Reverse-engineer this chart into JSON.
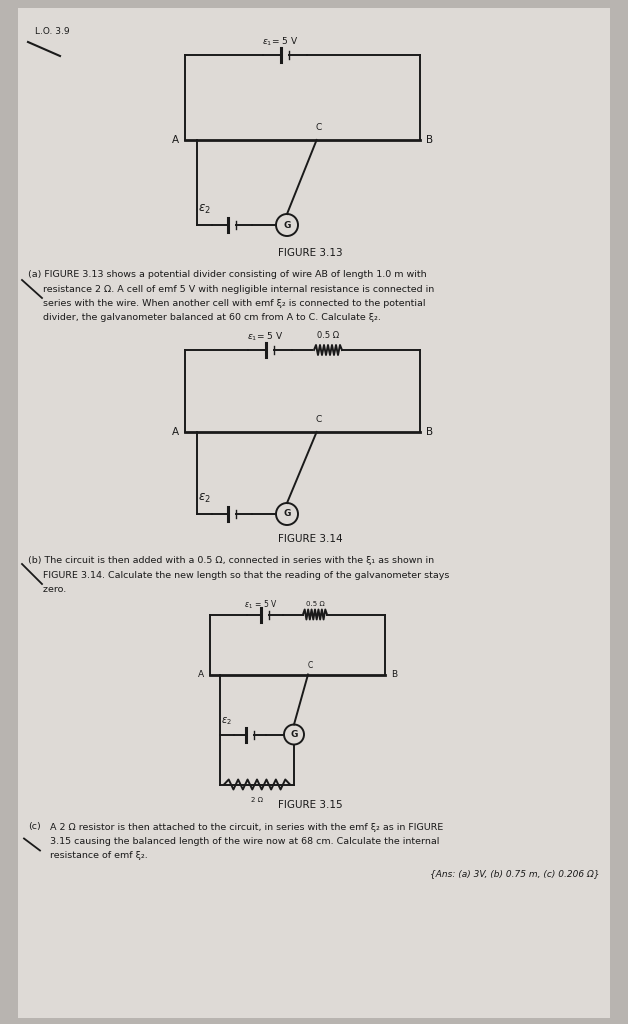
{
  "bg_color": "#b8b4b0",
  "paper_color": "#dedad6",
  "black": "#1a1a1a",
  "lw": 1.4,
  "fs_main": 7.5,
  "fs_small": 6.5,
  "lo_text": "L.O. 3.9",
  "fig1_label": "FIGURE 3.13",
  "fig2_label": "FIGURE 3.14",
  "fig3_label": "FIGURE 3.15",
  "emf1_label": "$\\varepsilon_1$= 5 V",
  "emf2_label": "$\\varepsilon_2$",
  "res_label": "0.5 Ω",
  "res2_label": "2 Ω",
  "A_label": "A",
  "B_label": "B",
  "C_label": "C",
  "G_label": "G",
  "lines_a": [
    "(a) FIGURE 3.13 shows a potential divider consisting of wire AB of length 1.0 m with",
    "     resistance 2 Ω. A cell of emf 5 V with negligible internal resistance is connected in",
    "     series with the wire. When another cell with emf ξ₂ is connected to the potential",
    "     divider, the galvanometer balanced at 60 cm from A to C. Calculate ξ₂."
  ],
  "lines_b": [
    "(b) The circuit is then added with a 0.5 Ω, connected in series with the ξ₁ as shown in",
    "     FIGURE 3.14. Calculate the new length so that the reading of the galvanometer stays",
    "     zero."
  ],
  "lines_c": [
    "A 2 Ω resistor is then attached to the circuit, in series with the emf ξ₂ as in FIGURE",
    "3.15 causing the balanced length of the wire now at 68 cm. Calculate the internal",
    "resistance of emf ξ₂."
  ],
  "ans_text": "{Ans: (a) 3V, (b) 0.75 m, (c) 0.206 Ω}"
}
